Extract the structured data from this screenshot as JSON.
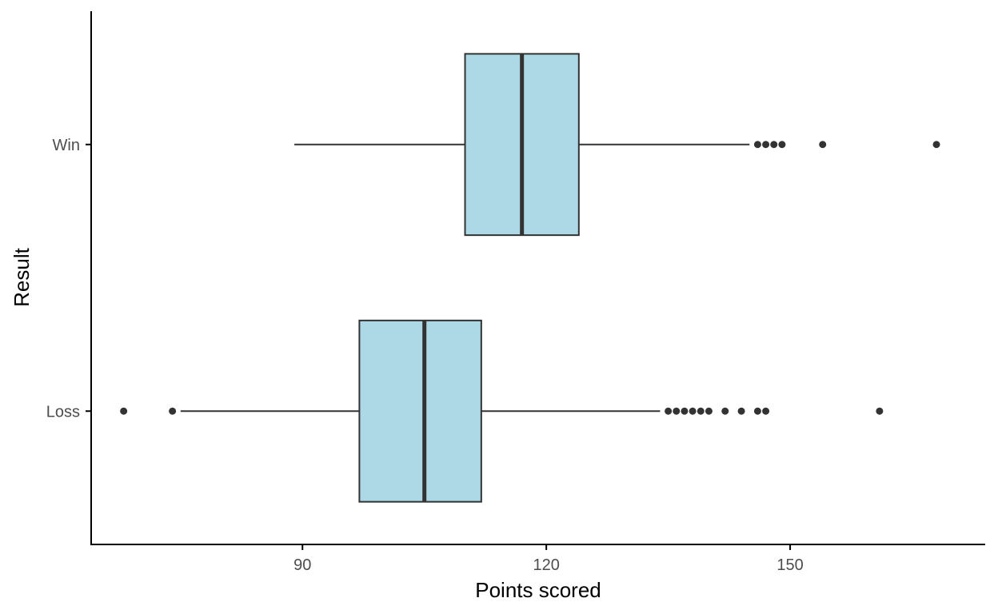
{
  "chart_data": {
    "type": "boxplot",
    "orientation": "horizontal",
    "title": "",
    "xlabel": "Points scored",
    "ylabel": "Result",
    "xlim": [
      64,
      174
    ],
    "x_ticks": [
      90,
      120,
      150
    ],
    "categories": [
      "Loss",
      "Win"
    ],
    "grid": false,
    "fill_color": "#add8e6",
    "line_color": "#333333",
    "boxes": [
      {
        "name": "Loss",
        "whisker_low": 75,
        "q1": 97,
        "median": 105,
        "q3": 112,
        "whisker_high": 134,
        "outliers": [
          68,
          74,
          135,
          136,
          137,
          138,
          139,
          140,
          142,
          144,
          146,
          147,
          161
        ]
      },
      {
        "name": "Win",
        "whisker_low": 89,
        "q1": 110,
        "median": 117,
        "q3": 124,
        "whisker_high": 145,
        "outliers": [
          146,
          147,
          148,
          149,
          154,
          168
        ]
      }
    ]
  }
}
